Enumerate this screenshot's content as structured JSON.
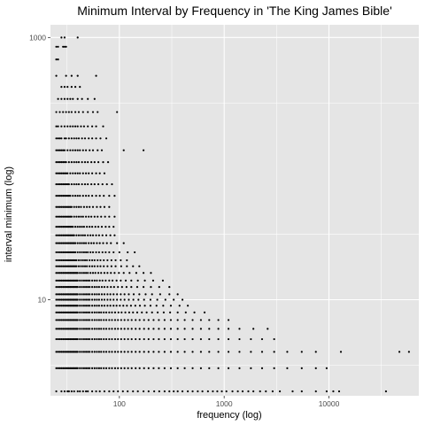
{
  "chart_data": {
    "type": "scatter",
    "title": "Minimum Interval by Frequency in 'The King James Bible'",
    "xlabel": "frequency (log)",
    "ylabel": "interval minimum (log)",
    "xscale": "log",
    "yscale": "log",
    "xlim": [
      22,
      72000
    ],
    "ylim": [
      1.85,
      1250
    ],
    "xticks": [
      100,
      1000,
      10000
    ],
    "xtick_labels": [
      "100",
      "1000",
      "10000"
    ],
    "yticks": [
      10,
      1000
    ],
    "ytick_labels": [
      "10",
      "1000"
    ],
    "grid": true,
    "background": "#e5e5e5",
    "grid_color": "#ffffff",
    "point_color": "#000000",
    "rows": [
      {
        "y": 1000,
        "x": [
          28,
          30,
          40
        ]
      },
      {
        "y": 850,
        "x": [
          25,
          26,
          29,
          30,
          31
        ]
      },
      {
        "y": 680,
        "x": [
          25,
          26
        ]
      },
      {
        "y": 510,
        "x": [
          25,
          31,
          35,
          40,
          60
        ]
      },
      {
        "y": 420,
        "x": [
          28,
          30,
          32,
          35,
          38,
          42
        ]
      },
      {
        "y": 340,
        "x": [
          26,
          28,
          30,
          32,
          34,
          36,
          40,
          44,
          50,
          58
        ]
      },
      {
        "y": 270,
        "x": [
          25,
          27,
          29,
          31,
          33,
          35,
          38,
          41,
          45,
          50,
          56,
          62,
          95
        ]
      },
      {
        "y": 210,
        "x": [
          25,
          26,
          28,
          30,
          32,
          34,
          36,
          38,
          40,
          43,
          46,
          50,
          55,
          60,
          70
        ]
      },
      {
        "y": 170,
        "x": [
          25,
          26,
          27,
          28,
          30,
          31,
          33,
          35,
          37,
          39,
          41,
          44,
          47,
          51,
          55,
          60,
          66,
          75
        ]
      },
      {
        "y": 138,
        "x": [
          25,
          26,
          27,
          28,
          29,
          30,
          32,
          34,
          36,
          38,
          40,
          42,
          45,
          48,
          52,
          56,
          62,
          68,
          110,
          170
        ]
      },
      {
        "y": 112,
        "x": [
          25,
          26,
          27,
          28,
          29,
          30,
          31,
          33,
          35,
          37,
          39,
          41,
          44,
          47,
          50,
          54,
          58,
          63,
          70,
          78
        ]
      },
      {
        "y": 92,
        "x": [
          25,
          26,
          27,
          28,
          29,
          30,
          31,
          32,
          34,
          36,
          38,
          40,
          42,
          45,
          48,
          51,
          55,
          60,
          65,
          72
        ]
      },
      {
        "y": 76,
        "x": [
          25,
          26,
          27,
          28,
          29,
          30,
          31,
          32,
          33,
          35,
          37,
          39,
          41,
          44,
          47,
          50,
          54,
          58,
          63,
          69,
          76,
          85
        ]
      },
      {
        "y": 62,
        "x": [
          25,
          26,
          27,
          28,
          29,
          30,
          31,
          32,
          33,
          34,
          36,
          38,
          40,
          42,
          45,
          48,
          51,
          55,
          60,
          65,
          71,
          80,
          90
        ]
      },
      {
        "y": 51,
        "x": [
          25,
          26,
          27,
          28,
          29,
          30,
          31,
          32,
          33,
          34,
          35,
          37,
          39,
          41,
          43,
          46,
          49,
          52,
          56,
          61,
          66,
          72,
          80
        ]
      },
      {
        "y": 43,
        "x": [
          25,
          26,
          27,
          28,
          29,
          30,
          31,
          32,
          33,
          34,
          35,
          37,
          39,
          41,
          43,
          45,
          48,
          51,
          54,
          58,
          62,
          67,
          73,
          80,
          90
        ]
      },
      {
        "y": 36,
        "x": [
          25,
          26,
          27,
          28,
          29,
          30,
          31,
          32,
          33,
          34,
          35,
          36,
          38,
          40,
          42,
          44,
          46,
          49,
          52,
          55,
          59,
          63,
          68,
          74,
          80,
          88
        ]
      },
      {
        "y": 31,
        "x": [
          25,
          26,
          27,
          28,
          29,
          30,
          31,
          32,
          33,
          34,
          35,
          36,
          37,
          39,
          41,
          43,
          45,
          47,
          50,
          53,
          56,
          60,
          64,
          69,
          75,
          82,
          90
        ]
      },
      {
        "y": 27,
        "x": [
          25,
          26,
          27,
          28,
          29,
          30,
          31,
          32,
          33,
          34,
          35,
          36,
          37,
          38,
          40,
          42,
          44,
          46,
          48,
          51,
          54,
          57,
          61,
          65,
          70,
          76,
          83,
          95,
          110
        ]
      },
      {
        "y": 23,
        "x": [
          25,
          26,
          27,
          28,
          29,
          30,
          31,
          32,
          33,
          34,
          35,
          36,
          37,
          38,
          40,
          42,
          44,
          46,
          48,
          50,
          53,
          56,
          60,
          64,
          69,
          74,
          80,
          88,
          100,
          120,
          140
        ]
      },
      {
        "y": 20,
        "x": [
          25,
          26,
          27,
          28,
          29,
          30,
          31,
          32,
          33,
          34,
          35,
          36,
          37,
          38,
          39,
          41,
          43,
          45,
          47,
          49,
          52,
          55,
          58,
          62,
          66,
          71,
          77,
          84,
          92,
          103,
          118
        ]
      },
      {
        "y": 18,
        "x": [
          25,
          26,
          27,
          28,
          29,
          30,
          31,
          32,
          33,
          34,
          35,
          36,
          37,
          38,
          39,
          41,
          43,
          45,
          47,
          49,
          52,
          55,
          58,
          62,
          66,
          71,
          77,
          84,
          92,
          104,
          118,
          135,
          155
        ]
      },
      {
        "y": 16,
        "x": [
          25,
          26,
          27,
          28,
          29,
          30,
          31,
          32,
          33,
          34,
          35,
          36,
          37,
          38,
          39,
          40,
          42,
          44,
          46,
          48,
          50,
          53,
          56,
          59,
          63,
          67,
          72,
          77,
          83,
          90,
          99,
          110,
          125,
          145,
          170,
          200
        ]
      },
      {
        "y": 14,
        "x": [
          25,
          26,
          27,
          28,
          29,
          30,
          31,
          32,
          33,
          34,
          35,
          36,
          37,
          38,
          39,
          40,
          42,
          44,
          46,
          48,
          50,
          52,
          55,
          58,
          61,
          65,
          69,
          74,
          80,
          86,
          94,
          103,
          115,
          130,
          150,
          175,
          210,
          260
        ]
      },
      {
        "y": 12.5,
        "x": [
          25,
          26,
          27,
          28,
          29,
          30,
          31,
          32,
          33,
          34,
          35,
          36,
          37,
          38,
          39,
          40,
          42,
          44,
          46,
          48,
          50,
          52,
          55,
          58,
          61,
          64,
          68,
          72,
          77,
          83,
          89,
          97,
          106,
          117,
          130,
          148,
          170,
          200,
          240,
          300
        ]
      },
      {
        "y": 11,
        "x": [
          25,
          26,
          27,
          28,
          29,
          30,
          31,
          32,
          33,
          34,
          35,
          36,
          37,
          38,
          39,
          40,
          42,
          44,
          46,
          48,
          50,
          52,
          55,
          58,
          61,
          64,
          68,
          72,
          77,
          82,
          88,
          95,
          103,
          112,
          123,
          137,
          155,
          178,
          205,
          245,
          300,
          360
        ]
      },
      {
        "y": 10,
        "x": [
          25,
          26,
          27,
          28,
          29,
          30,
          31,
          32,
          33,
          34,
          35,
          36,
          37,
          38,
          39,
          40,
          42,
          44,
          46,
          48,
          50,
          52,
          55,
          58,
          61,
          64,
          68,
          72,
          77,
          82,
          88,
          95,
          103,
          112,
          123,
          136,
          152,
          172,
          198,
          230,
          275,
          330,
          400
        ]
      },
      {
        "y": 9,
        "x": [
          25,
          26,
          27,
          28,
          29,
          30,
          31,
          32,
          33,
          34,
          35,
          36,
          37,
          38,
          39,
          40,
          42,
          44,
          46,
          48,
          50,
          52,
          55,
          58,
          61,
          64,
          68,
          72,
          77,
          82,
          88,
          94,
          101,
          109,
          118,
          129,
          142,
          157,
          175,
          198,
          226,
          262,
          310,
          375,
          450
        ]
      },
      {
        "y": 8,
        "x": [
          25,
          26,
          27,
          28,
          29,
          30,
          31,
          32,
          33,
          34,
          35,
          36,
          37,
          38,
          39,
          40,
          42,
          44,
          46,
          48,
          50,
          52,
          55,
          58,
          61,
          64,
          67,
          71,
          75,
          80,
          85,
          91,
          98,
          105,
          114,
          124,
          135,
          148,
          164,
          182,
          205,
          232,
          265,
          305,
          360,
          430,
          520,
          650
        ]
      },
      {
        "y": 7,
        "x": [
          25,
          26,
          27,
          28,
          29,
          30,
          31,
          32,
          33,
          34,
          35,
          36,
          37,
          38,
          39,
          40,
          42,
          44,
          46,
          48,
          50,
          52,
          55,
          58,
          61,
          64,
          67,
          71,
          75,
          80,
          85,
          91,
          97,
          104,
          112,
          121,
          131,
          143,
          156,
          172,
          190,
          212,
          238,
          270,
          310,
          360,
          420,
          500,
          600,
          720,
          880,
          1100
        ]
      },
      {
        "y": 6,
        "x": [
          25,
          26,
          27,
          28,
          29,
          30,
          31,
          32,
          33,
          34,
          35,
          36,
          37,
          38,
          39,
          40,
          42,
          44,
          46,
          48,
          50,
          52,
          55,
          58,
          61,
          64,
          67,
          71,
          75,
          80,
          85,
          91,
          97,
          104,
          112,
          121,
          131,
          143,
          156,
          172,
          190,
          212,
          238,
          270,
          310,
          360,
          420,
          500,
          600,
          720,
          880,
          1100,
          1400,
          1900,
          2600
        ]
      },
      {
        "y": 5,
        "x": [
          25,
          26,
          27,
          28,
          29,
          30,
          31,
          32,
          33,
          34,
          35,
          36,
          37,
          38,
          39,
          40,
          42,
          44,
          46,
          48,
          50,
          52,
          55,
          58,
          61,
          64,
          67,
          71,
          75,
          80,
          85,
          91,
          97,
          104,
          112,
          121,
          131,
          143,
          156,
          172,
          190,
          212,
          238,
          270,
          310,
          360,
          420,
          500,
          600,
          720,
          880,
          1100,
          1400,
          1800,
          2300,
          3000
        ]
      },
      {
        "y": 4,
        "x": [
          25,
          26,
          27,
          28,
          29,
          30,
          31,
          32,
          33,
          34,
          35,
          36,
          37,
          38,
          39,
          40,
          42,
          44,
          46,
          48,
          50,
          52,
          55,
          58,
          61,
          64,
          67,
          71,
          75,
          80,
          85,
          91,
          97,
          104,
          112,
          121,
          131,
          143,
          156,
          172,
          190,
          212,
          238,
          270,
          310,
          360,
          420,
          500,
          600,
          720,
          880,
          1100,
          1400,
          1800,
          2300,
          3000,
          4000,
          5500,
          7500,
          13000,
          47000,
          58000
        ]
      },
      {
        "y": 3,
        "x": [
          25,
          26,
          27,
          28,
          29,
          30,
          31,
          32,
          33,
          34,
          35,
          36,
          37,
          38,
          39,
          40,
          42,
          44,
          46,
          48,
          50,
          52,
          55,
          58,
          61,
          64,
          67,
          71,
          75,
          80,
          85,
          91,
          97,
          104,
          112,
          121,
          131,
          143,
          156,
          172,
          190,
          212,
          238,
          270,
          310,
          360,
          420,
          500,
          600,
          720,
          880,
          1100,
          1400,
          1800,
          2300,
          3000,
          4000,
          5500,
          7500,
          9500
        ]
      },
      {
        "y": 2,
        "x": [
          25,
          28,
          30,
          32,
          33,
          35,
          37,
          40,
          42,
          45,
          48,
          50,
          55,
          60,
          65,
          72,
          80,
          88,
          97,
          108,
          120,
          135,
          150,
          170,
          190,
          215,
          240,
          270,
          300,
          330,
          360,
          400,
          450,
          500,
          560,
          620,
          700,
          780,
          860,
          950,
          1050,
          1200,
          1350,
          1500,
          1700,
          1900,
          2200,
          2500,
          2900,
          3400,
          4500,
          5500,
          7500,
          9500,
          11000,
          12500,
          35000
        ]
      }
    ]
  }
}
